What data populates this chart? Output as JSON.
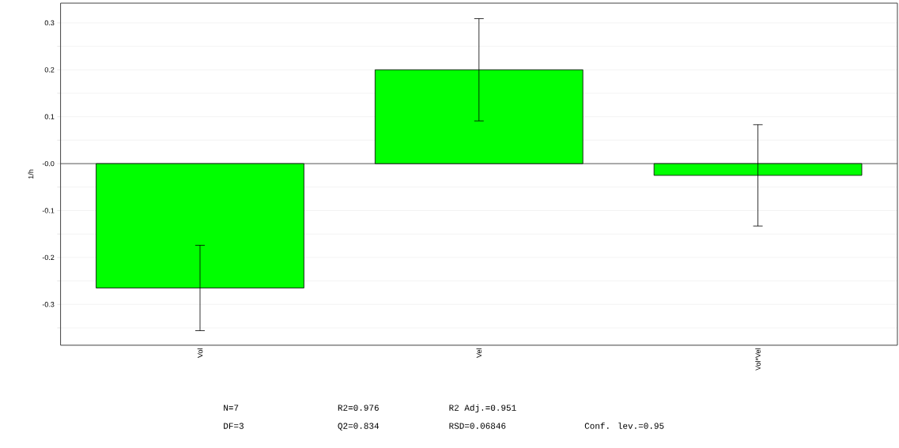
{
  "chart_data": {
    "type": "bar",
    "ylabel": "1/h",
    "categories": [
      "Vol",
      "Vel",
      "Vol*Vel"
    ],
    "values": [
      -0.265,
      0.2,
      -0.025
    ],
    "errors": [
      0.091,
      0.109,
      0.108
    ],
    "color": "#00ff00",
    "ylim": [
      -0.387,
      0.342
    ],
    "yticks": [
      {
        "value": -0.35,
        "label": null
      },
      {
        "value": -0.3,
        "label": "-0.3"
      },
      {
        "value": -0.25,
        "label": null
      },
      {
        "value": -0.2,
        "label": "-0.2"
      },
      {
        "value": -0.15,
        "label": null
      },
      {
        "value": -0.1,
        "label": "-0.1"
      },
      {
        "value": -0.05,
        "label": null
      },
      {
        "value": 0,
        "label": "-0.0"
      },
      {
        "value": 0.05,
        "label": null
      },
      {
        "value": 0.1,
        "label": "0.1"
      },
      {
        "value": 0.15,
        "label": null
      },
      {
        "value": 0.2,
        "label": "0.2"
      },
      {
        "value": 0.25,
        "label": null
      },
      {
        "value": 0.3,
        "label": "0.3"
      }
    ],
    "grid": "y",
    "annotations": [
      "N=7",
      "R2=0.976",
      "R2 Adj.=0.951",
      "DF=3",
      "Q2=0.834",
      "RSD=0.06846",
      "Conf. lev.=0.95"
    ]
  }
}
